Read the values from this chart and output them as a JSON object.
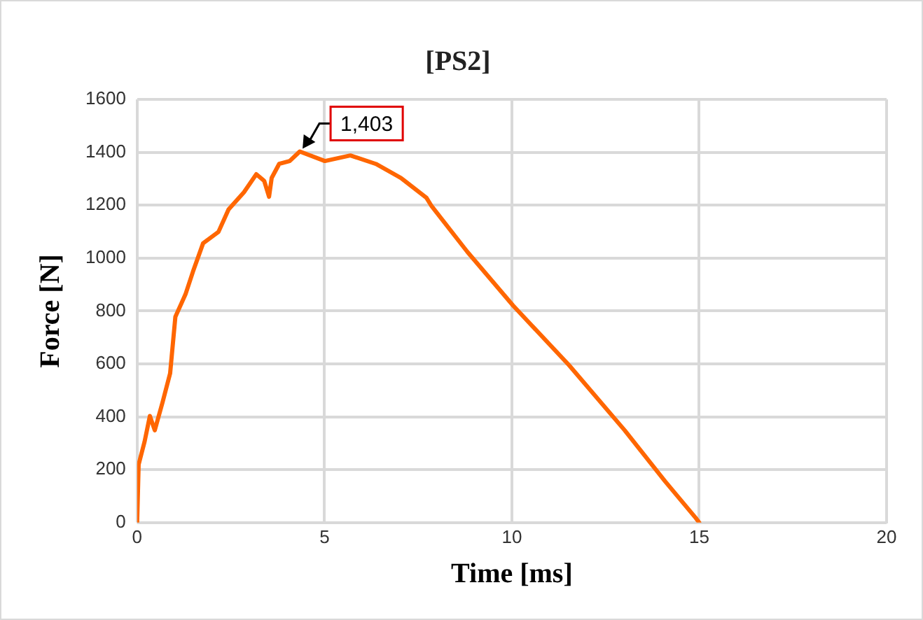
{
  "chart_data": {
    "type": "line",
    "title": "[PS2]",
    "xlabel": "Time [ms]",
    "ylabel": "Force [N]",
    "x": [
      0,
      0.04,
      0.2,
      0.34,
      0.47,
      0.68,
      0.88,
      1.02,
      1.29,
      1.49,
      1.76,
      2.17,
      2.44,
      2.85,
      3.18,
      3.39,
      3.52,
      3.59,
      3.79,
      4.07,
      4.34,
      5.01,
      5.69,
      6.37,
      7.04,
      7.72,
      7.86,
      8.81,
      10.03,
      11.52,
      13.01,
      14.09,
      14.91,
      15
    ],
    "series": [
      {
        "color": "#ff6600",
        "values": [
          0,
          220,
          307,
          403,
          349,
          456,
          564,
          778,
          863,
          949,
          1056,
          1099,
          1184,
          1249,
          1317,
          1292,
          1232,
          1303,
          1356,
          1367,
          1403,
          1367,
          1388,
          1356,
          1303,
          1228,
          1196,
          1024,
          821,
          596,
          349,
          156,
          17,
          0
        ]
      }
    ],
    "xlim": [
      0,
      20
    ],
    "xticks": [
      0,
      5,
      10,
      15,
      20
    ],
    "ylim": [
      0,
      1600
    ],
    "yticks": [
      0,
      200,
      400,
      600,
      800,
      1000,
      1200,
      1400,
      1600
    ],
    "grid": true,
    "legend": false,
    "marker": "none",
    "line_style": "solid",
    "annotations": [
      {
        "text": "1,403",
        "x": 4.34,
        "y": 1403
      }
    ]
  }
}
